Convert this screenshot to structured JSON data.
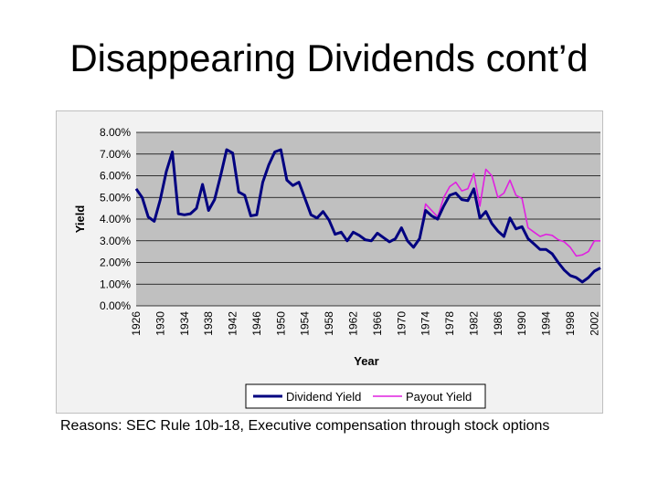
{
  "slide": {
    "title": "Disappearing Dividends cont’d",
    "caption": "Reasons: SEC Rule 10b-18, Executive compensation through stock options"
  },
  "colors": {
    "dividend": "#000080",
    "payout": "#e020e0",
    "plot_bg": "#c0c0c0",
    "frame_bg": "#f2f2f2"
  },
  "chart_data": {
    "type": "line",
    "title": "",
    "xlabel": "Year",
    "ylabel": "Yield",
    "ylim": [
      0,
      8
    ],
    "y_ticks": [
      "0.00%",
      "1.00%",
      "2.00%",
      "3.00%",
      "4.00%",
      "5.00%",
      "6.00%",
      "7.00%",
      "8.00%"
    ],
    "x_tick_labels": [
      "1926",
      "1930",
      "1934",
      "1938",
      "1942",
      "1946",
      "1950",
      "1954",
      "1958",
      "1962",
      "1966",
      "1970",
      "1974",
      "1978",
      "1982",
      "1986",
      "1990",
      "1994",
      "1998",
      "2002"
    ],
    "grid": true,
    "legend_position": "bottom",
    "x": [
      1926,
      1927,
      1928,
      1929,
      1930,
      1931,
      1932,
      1933,
      1934,
      1935,
      1936,
      1937,
      1938,
      1939,
      1940,
      1941,
      1942,
      1943,
      1944,
      1945,
      1946,
      1947,
      1948,
      1949,
      1950,
      1951,
      1952,
      1953,
      1954,
      1955,
      1956,
      1957,
      1958,
      1959,
      1960,
      1961,
      1962,
      1963,
      1964,
      1965,
      1966,
      1967,
      1968,
      1969,
      1970,
      1971,
      1972,
      1973,
      1974,
      1975,
      1976,
      1977,
      1978,
      1979,
      1980,
      1981,
      1982,
      1983,
      1984,
      1985,
      1986,
      1987,
      1988,
      1989,
      1990,
      1991,
      1992,
      1993,
      1994,
      1995,
      1996,
      1997,
      1998,
      1999,
      2000,
      2001,
      2002,
      2003
    ],
    "series": [
      {
        "name": "Dividend Yield",
        "values": [
          5.4,
          5.0,
          4.1,
          3.9,
          4.9,
          6.2,
          7.1,
          4.25,
          4.2,
          4.25,
          4.5,
          5.6,
          4.4,
          4.9,
          6.0,
          7.2,
          7.05,
          5.25,
          5.1,
          4.15,
          4.2,
          5.7,
          6.5,
          7.1,
          7.2,
          5.8,
          5.55,
          5.7,
          4.95,
          4.2,
          4.05,
          4.35,
          3.95,
          3.3,
          3.4,
          3.0,
          3.4,
          3.25,
          3.05,
          3.0,
          3.35,
          3.15,
          2.95,
          3.1,
          3.6,
          3.0,
          2.7,
          3.1,
          4.4,
          4.15,
          4.0,
          4.6,
          5.1,
          5.2,
          4.9,
          4.85,
          5.4,
          4.05,
          4.35,
          3.8,
          3.45,
          3.2,
          4.05,
          3.55,
          3.65,
          3.1,
          2.85,
          2.6,
          2.6,
          2.4,
          2.0,
          1.65,
          1.4,
          1.3,
          1.1,
          1.3,
          1.6,
          1.75
        ]
      },
      {
        "name": "Payout Yield",
        "values": [
          5.4,
          5.0,
          4.1,
          3.9,
          4.9,
          6.2,
          7.1,
          4.25,
          4.2,
          4.25,
          4.5,
          5.6,
          4.4,
          4.9,
          6.0,
          7.2,
          7.05,
          5.25,
          5.1,
          4.15,
          4.2,
          5.7,
          6.5,
          7.1,
          7.2,
          5.8,
          5.55,
          5.7,
          4.95,
          4.2,
          4.05,
          4.35,
          3.95,
          3.3,
          3.4,
          3.0,
          3.4,
          3.25,
          3.05,
          3.0,
          3.35,
          3.15,
          2.95,
          3.1,
          3.6,
          3.0,
          2.7,
          3.1,
          4.7,
          4.4,
          4.1,
          5.0,
          5.5,
          5.7,
          5.3,
          5.4,
          6.1,
          4.6,
          6.3,
          6.0,
          5.0,
          5.2,
          5.8,
          5.1,
          4.95,
          3.6,
          3.4,
          3.2,
          3.3,
          3.25,
          3.05,
          2.95,
          2.7,
          2.3,
          2.35,
          2.5,
          3.0,
          3.0
        ]
      }
    ]
  }
}
